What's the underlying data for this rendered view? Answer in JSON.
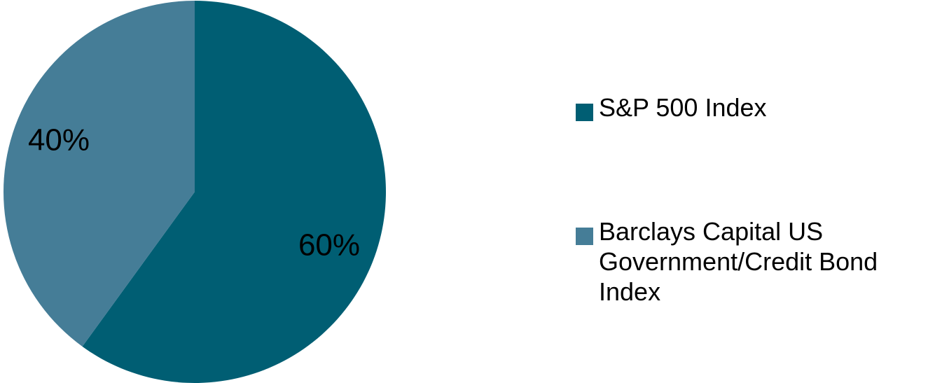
{
  "chart_data": {
    "type": "pie",
    "title": "",
    "slices": [
      {
        "name": "S&P 500 Index",
        "value": 60,
        "label": "60%",
        "color": "#005e73"
      },
      {
        "name": "Barclays Capital US Government/Credit Bond Index",
        "value": 40,
        "label": "40%",
        "color": "#457d97"
      }
    ],
    "start_angle_deg": 0,
    "direction": "clockwise",
    "legend_position": "right"
  }
}
